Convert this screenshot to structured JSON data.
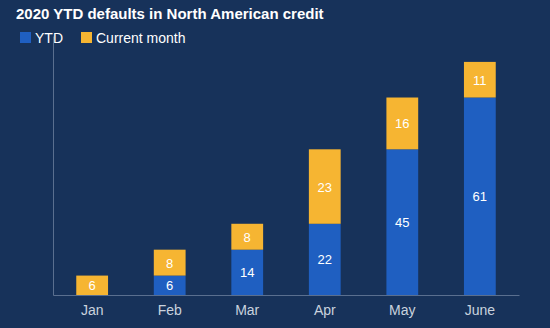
{
  "chart_data": {
    "type": "bar",
    "title": "2020 YTD defaults in North American credit",
    "categories": [
      "Jan",
      "Feb",
      "Mar",
      "Apr",
      "May",
      "June"
    ],
    "series": [
      {
        "name": "YTD",
        "color": "#1f5fc1",
        "values": [
          null,
          6,
          14,
          22,
          45,
          61
        ]
      },
      {
        "name": "Current month",
        "color": "#f6b532",
        "values": [
          6,
          8,
          8,
          23,
          16,
          11
        ]
      }
    ],
    "ylim": [
      0,
      80
    ],
    "stacked": true,
    "data_labels": true,
    "legend": "top-left",
    "tick_labels": "x"
  }
}
